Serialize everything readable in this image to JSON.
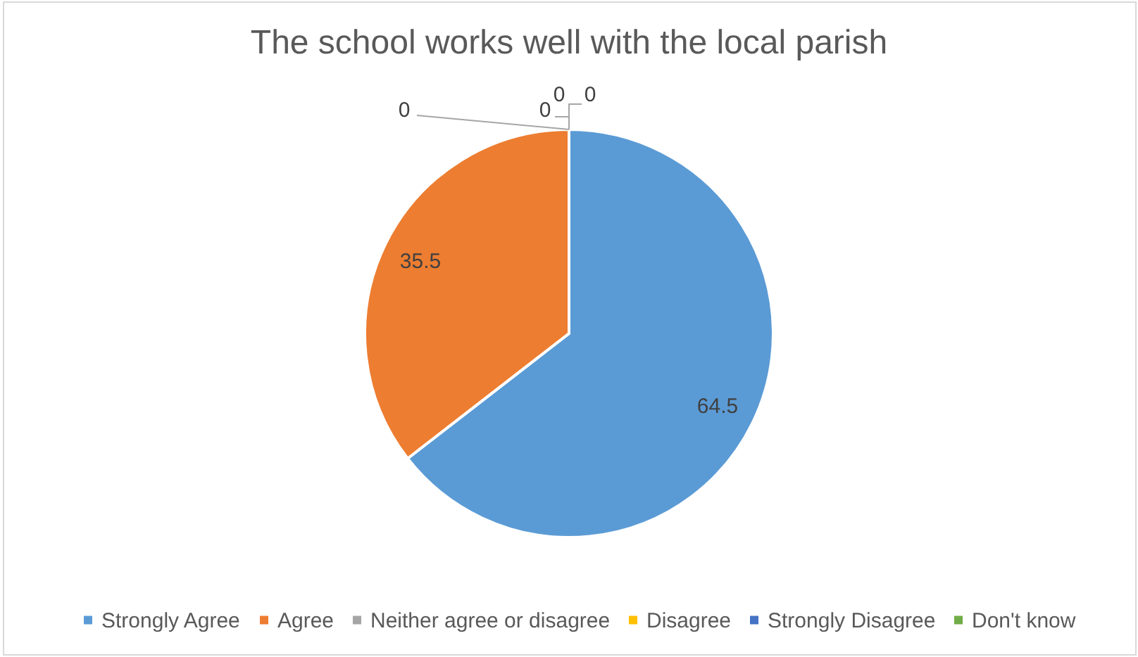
{
  "chart_data": {
    "type": "pie",
    "title": "The school works well with the local parish",
    "categories": [
      "Strongly Agree",
      "Agree",
      "Neither agree or disagree",
      "Disagree",
      "Strongly Disagree",
      "Don't know"
    ],
    "values": [
      64.5,
      35.5,
      0,
      0,
      0,
      0
    ],
    "colors": [
      "#5b9bd5",
      "#ed7d31",
      "#a5a5a5",
      "#ffc000",
      "#4472c4",
      "#70ad47"
    ],
    "value_labels": [
      "64.5",
      "35.5",
      "0",
      "0",
      "0",
      "0"
    ],
    "legend": "bottom"
  }
}
